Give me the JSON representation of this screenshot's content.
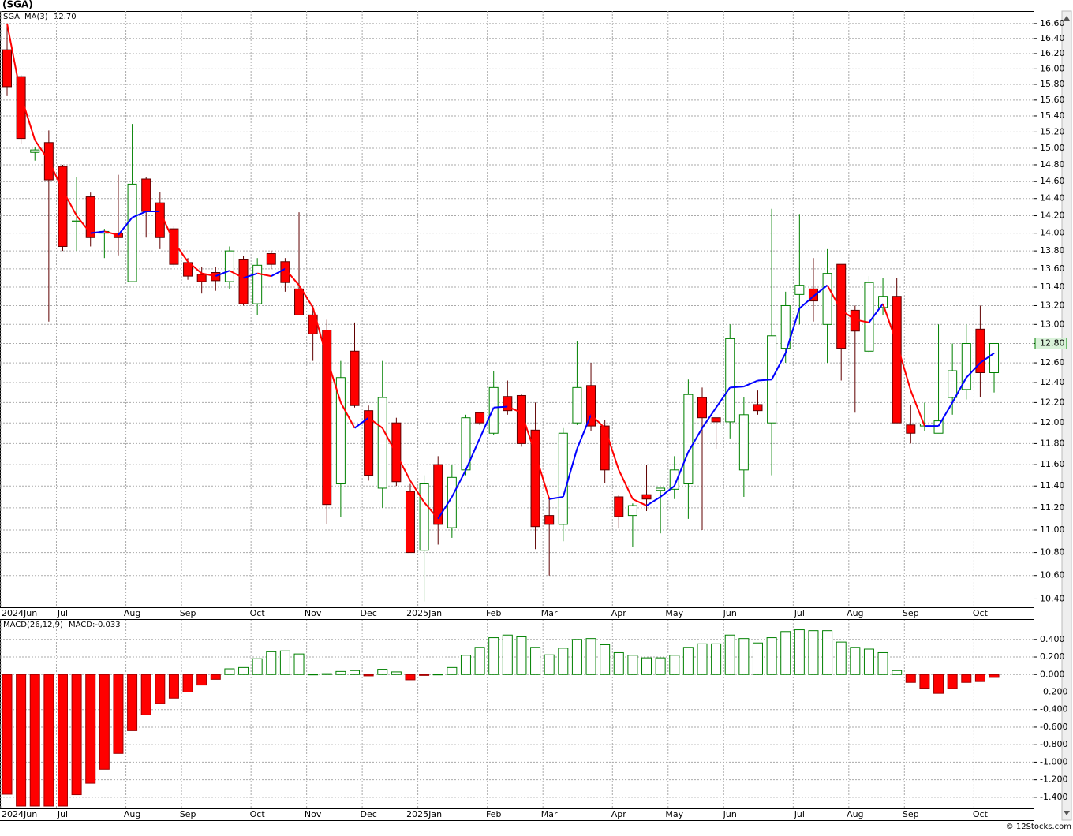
{
  "chart_data": [
    {
      "type": "candlestick",
      "title": "(SGA)",
      "legend_symbol": "SGA",
      "legend_ma": "MA(3)",
      "ma_last_label": "12.70",
      "last_price_label": "12.80",
      "log_scale": true,
      "grid": true,
      "up_color": "#008000",
      "down_color": "#ff0000",
      "ma_up_color": "#0000ff",
      "ma_down_color": "#ff0000",
      "categories": [
        "2024Jun",
        null,
        null,
        null,
        "Jul",
        null,
        null,
        null,
        null,
        "Aug",
        null,
        null,
        null,
        "Sep",
        null,
        null,
        null,
        null,
        "Oct",
        null,
        null,
        null,
        "Nov",
        null,
        null,
        null,
        "Dec",
        null,
        null,
        null,
        "2025Jan",
        null,
        null,
        null,
        null,
        "Feb",
        null,
        null,
        null,
        "Mar",
        null,
        null,
        null,
        null,
        "Apr",
        null,
        null,
        null,
        "May",
        null,
        null,
        null,
        "Jun",
        null,
        null,
        null,
        null,
        "Jul",
        null,
        null,
        null,
        "Aug",
        null,
        null,
        null,
        "Sep",
        null,
        null,
        null,
        null,
        "Oct",
        null
      ],
      "open": [
        16.25,
        15.9,
        14.95,
        15.07,
        14.78,
        14.13,
        14.42,
        14.0,
        14.0,
        13.46,
        14.63,
        14.35,
        14.05,
        13.67,
        13.54,
        13.56,
        13.46,
        13.7,
        13.22,
        13.77,
        13.68,
        13.38,
        13.1,
        12.94,
        11.42,
        12.72,
        12.12,
        11.38,
        12.0,
        11.35,
        10.82,
        11.6,
        11.02,
        11.55,
        12.1,
        11.9,
        12.26,
        12.27,
        11.93,
        11.13,
        11.05,
        12.0,
        12.37,
        11.97,
        11.3,
        11.13,
        11.32,
        11.36,
        11.37,
        11.42,
        12.25,
        12.05,
        12.01,
        11.55,
        12.18,
        12.0,
        12.75,
        13.32,
        13.38,
        13.0,
        13.65,
        13.15,
        12.72,
        13.18,
        13.3,
        11.98,
        11.97,
        11.9,
        12.25,
        12.33,
        12.95,
        12.5
      ],
      "high": [
        16.6,
        15.92,
        15.02,
        15.22,
        14.8,
        14.65,
        14.47,
        14.05,
        14.68,
        15.3,
        14.65,
        14.48,
        14.08,
        13.72,
        13.62,
        13.62,
        13.85,
        13.74,
        13.72,
        13.8,
        13.72,
        14.24,
        13.2,
        13.05,
        12.62,
        13.02,
        12.17,
        12.62,
        12.05,
        11.42,
        11.5,
        11.68,
        11.6,
        12.08,
        12.1,
        12.52,
        12.42,
        12.28,
        12.2,
        11.3,
        11.95,
        12.82,
        12.6,
        12.03,
        11.32,
        11.24,
        11.6,
        11.38,
        11.68,
        12.43,
        12.35,
        12.05,
        13.0,
        12.25,
        12.32,
        14.28,
        13.35,
        14.22,
        13.72,
        13.82,
        13.65,
        13.2,
        13.52,
        13.5,
        13.5,
        12.18,
        12.2,
        13.0,
        12.8,
        13.0,
        13.2,
        12.8
      ],
      "low": [
        15.65,
        15.05,
        14.85,
        13.03,
        13.8,
        13.8,
        13.85,
        13.72,
        13.75,
        13.46,
        13.95,
        13.82,
        13.62,
        13.48,
        13.33,
        13.36,
        13.38,
        13.2,
        13.1,
        13.6,
        13.35,
        13.1,
        12.62,
        11.05,
        11.12,
        12.15,
        11.45,
        11.2,
        11.4,
        10.8,
        10.38,
        10.87,
        10.93,
        11.5,
        11.98,
        11.88,
        12.08,
        11.77,
        10.83,
        10.6,
        10.9,
        11.98,
        11.92,
        11.43,
        11.02,
        10.85,
        11.17,
        10.97,
        11.28,
        11.1,
        11.0,
        11.75,
        11.85,
        11.3,
        12.08,
        11.5,
        12.6,
        13.0,
        13.03,
        12.6,
        12.42,
        12.1,
        12.7,
        13.1,
        12.0,
        11.8,
        11.92,
        11.9,
        12.08,
        12.23,
        12.25,
        12.3
      ],
      "close": [
        15.77,
        15.12,
        14.98,
        14.62,
        13.85,
        14.14,
        13.95,
        14.02,
        13.95,
        14.57,
        14.25,
        13.95,
        13.65,
        13.52,
        13.46,
        13.47,
        13.8,
        13.22,
        13.64,
        13.65,
        13.45,
        13.1,
        12.9,
        11.23,
        12.45,
        12.17,
        11.5,
        12.25,
        11.44,
        10.8,
        11.42,
        11.05,
        11.48,
        12.05,
        12.0,
        12.35,
        12.12,
        11.8,
        11.03,
        11.05,
        11.9,
        12.35,
        11.97,
        11.55,
        11.12,
        11.22,
        11.28,
        11.38,
        11.55,
        12.28,
        12.05,
        12.01,
        12.85,
        12.08,
        12.12,
        12.88,
        13.2,
        13.42,
        13.25,
        13.55,
        12.75,
        12.93,
        13.45,
        13.3,
        12.0,
        11.9,
        11.99,
        12.02,
        12.52,
        12.8,
        12.5,
        12.8
      ],
      "ma": [
        16.6,
        15.65,
        15.1,
        14.85,
        14.5,
        14.2,
        14.0,
        14.02,
        13.98,
        14.18,
        14.25,
        14.25,
        13.9,
        13.68,
        13.55,
        13.52,
        13.58,
        13.5,
        13.55,
        13.52,
        13.6,
        13.42,
        13.18,
        12.65,
        12.2,
        11.95,
        12.05,
        11.95,
        11.7,
        11.45,
        11.25,
        11.1,
        11.3,
        11.55,
        11.85,
        12.15,
        12.16,
        12.1,
        11.7,
        11.28,
        11.3,
        11.75,
        12.08,
        11.95,
        11.55,
        11.28,
        11.22,
        11.3,
        11.4,
        11.72,
        11.95,
        12.15,
        12.35,
        12.36,
        12.42,
        12.43,
        12.7,
        13.17,
        13.3,
        13.42,
        13.15,
        13.05,
        13.02,
        13.22,
        12.8,
        12.32,
        11.97,
        11.97,
        12.2,
        12.45,
        12.6,
        12.7
      ],
      "ylim": [
        10.33,
        16.77
      ],
      "yticks": [
        {
          "value": 16.6,
          "label": "16.60"
        },
        {
          "value": 16.4,
          "label": "16.40"
        },
        {
          "value": 16.2,
          "label": "16.20"
        },
        {
          "value": 16,
          "label": "16.00"
        },
        {
          "value": 15.8,
          "label": "15.80"
        },
        {
          "value": 15.6,
          "label": "15.60"
        },
        {
          "value": 15.4,
          "label": "15.40"
        },
        {
          "value": 15.2,
          "label": "15.20"
        },
        {
          "value": 15,
          "label": "15.00"
        },
        {
          "value": 14.8,
          "label": "14.80"
        },
        {
          "value": 14.6,
          "label": "14.60"
        },
        {
          "value": 14.4,
          "label": "14.40"
        },
        {
          "value": 14.2,
          "label": "14.20"
        },
        {
          "value": 14,
          "label": "14.00"
        },
        {
          "value": 13.8,
          "label": "13.80"
        },
        {
          "value": 13.6,
          "label": "13.60"
        },
        {
          "value": 13.4,
          "label": "13.40"
        },
        {
          "value": 13.2,
          "label": "13.20"
        },
        {
          "value": 13,
          "label": "13.00"
        },
        {
          "value": 12.8,
          "label": "12.80"
        },
        {
          "value": 12.6,
          "label": "12.60"
        },
        {
          "value": 12.4,
          "label": "12.40"
        },
        {
          "value": 12.2,
          "label": "12.20"
        },
        {
          "value": 12,
          "label": "12.00"
        },
        {
          "value": 11.8,
          "label": "11.80"
        },
        {
          "value": 11.6,
          "label": "11.60"
        },
        {
          "value": 11.4,
          "label": "11.40"
        },
        {
          "value": 11.2,
          "label": "11.20"
        },
        {
          "value": 11,
          "label": "11.00"
        },
        {
          "value": 10.8,
          "label": "10.80"
        },
        {
          "value": 10.6,
          "label": "10.60"
        },
        {
          "value": 10.4,
          "label": "10.40"
        }
      ]
    },
    {
      "type": "bar",
      "legend_name": "MACD(26,12,9)",
      "legend_value": "MACD:-0.033",
      "grid": true,
      "up_color": "#008000",
      "down_color": "#ff0000",
      "values": [
        -1.365,
        -1.5,
        -1.5,
        -1.5,
        -1.5,
        -1.37,
        -1.24,
        -1.08,
        -0.9,
        -0.64,
        -0.46,
        -0.33,
        -0.27,
        -0.2,
        -0.12,
        -0.055,
        0.065,
        0.08,
        0.18,
        0.26,
        0.27,
        0.235,
        0.005,
        0.01,
        0.035,
        0.045,
        -0.015,
        0.06,
        0.03,
        -0.06,
        -0.01,
        0.005,
        0.08,
        0.22,
        0.31,
        0.42,
        0.45,
        0.43,
        0.31,
        0.225,
        0.3,
        0.4,
        0.41,
        0.34,
        0.25,
        0.22,
        0.19,
        0.19,
        0.22,
        0.31,
        0.35,
        0.35,
        0.45,
        0.41,
        0.36,
        0.42,
        0.49,
        0.51,
        0.5,
        0.5,
        0.37,
        0.31,
        0.29,
        0.25,
        0.045,
        -0.09,
        -0.155,
        -0.215,
        -0.16,
        -0.09,
        -0.08,
        -0.033
      ],
      "ylim": [
        -1.527,
        0.623
      ],
      "yticks": [
        {
          "value": 0.4,
          "label": "0.400"
        },
        {
          "value": 0.2,
          "label": "0.200"
        },
        {
          "value": 0,
          "label": "0.000"
        },
        {
          "value": -0.2,
          "label": "-0.200"
        },
        {
          "value": -0.4,
          "label": "-0.400"
        },
        {
          "value": -0.6,
          "label": "-0.600"
        },
        {
          "value": -0.8,
          "label": "-0.800"
        },
        {
          "value": -1,
          "label": "-1.000"
        },
        {
          "value": -1.2,
          "label": "-1.200"
        },
        {
          "value": -1.4,
          "label": "-1.400"
        }
      ]
    }
  ],
  "footer": "© 12Stocks.com"
}
